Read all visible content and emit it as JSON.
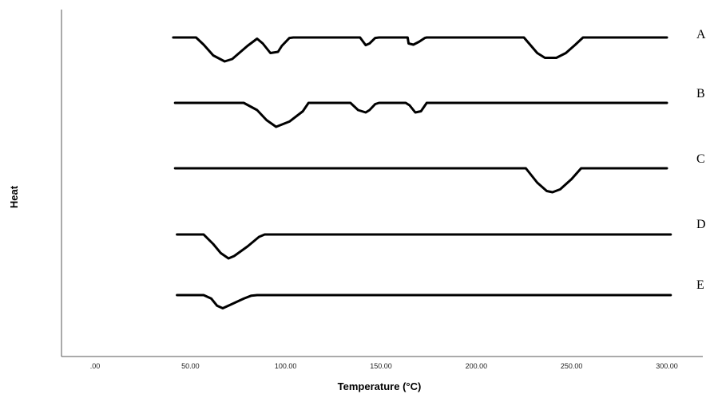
{
  "chart_data": {
    "type": "line",
    "xlabel": "Temperature (°C)",
    "ylabel": "Heat",
    "xlim": [
      -10,
      310
    ],
    "x_ticks": [
      ".00",
      "50.00",
      "100.00",
      "150.00",
      "200.00",
      "250.00",
      "300.00"
    ],
    "x_tick_values": [
      0,
      50,
      100,
      150,
      200,
      250,
      300
    ],
    "grid": false,
    "series": [
      {
        "name": "A",
        "points": [
          [
            41,
            0
          ],
          [
            53,
            0
          ],
          [
            57,
            -0.3
          ],
          [
            62,
            -0.75
          ],
          [
            68,
            -1
          ],
          [
            72,
            -0.9
          ],
          [
            80,
            -0.35
          ],
          [
            85,
            -0.05
          ],
          [
            88,
            -0.25
          ],
          [
            92,
            -0.65
          ],
          [
            96,
            -0.6
          ],
          [
            98,
            -0.35
          ],
          [
            102,
            -0.02
          ],
          [
            104,
            0
          ],
          [
            139,
            0
          ],
          [
            142,
            -0.32
          ],
          [
            144,
            -0.25
          ],
          [
            147,
            -0.02
          ],
          [
            149,
            0
          ],
          [
            164,
            0
          ],
          [
            164.5,
            -0.25
          ],
          [
            167,
            -0.3
          ],
          [
            170,
            -0.18
          ],
          [
            173,
            -0.02
          ],
          [
            174,
            0
          ],
          [
            225,
            0
          ],
          [
            232,
            -0.65
          ],
          [
            236,
            -0.85
          ],
          [
            242,
            -0.85
          ],
          [
            247,
            -0.65
          ],
          [
            252,
            -0.3
          ],
          [
            256,
            0
          ],
          [
            300,
            0
          ]
        ]
      },
      {
        "name": "B",
        "points": [
          [
            42,
            0
          ],
          [
            78,
            0
          ],
          [
            85,
            -0.3
          ],
          [
            90,
            -0.72
          ],
          [
            95,
            -1
          ],
          [
            102,
            -0.78
          ],
          [
            109,
            -0.35
          ],
          [
            112,
            0
          ],
          [
            134,
            0
          ],
          [
            138,
            -0.3
          ],
          [
            142,
            -0.4
          ],
          [
            144,
            -0.3
          ],
          [
            147,
            -0.05
          ],
          [
            149,
            0
          ],
          [
            163,
            0
          ],
          [
            165,
            -0.1
          ],
          [
            168,
            -0.4
          ],
          [
            171,
            -0.35
          ],
          [
            174,
            0
          ],
          [
            300,
            0
          ]
        ]
      },
      {
        "name": "C",
        "points": [
          [
            42,
            0
          ],
          [
            226,
            0
          ],
          [
            232,
            -0.6
          ],
          [
            237,
            -0.95
          ],
          [
            240,
            -1
          ],
          [
            244,
            -0.88
          ],
          [
            250,
            -0.45
          ],
          [
            255,
            0
          ],
          [
            300,
            0
          ]
        ]
      },
      {
        "name": "D",
        "points": [
          [
            43,
            0
          ],
          [
            57,
            0
          ],
          [
            62,
            -0.4
          ],
          [
            66,
            -0.78
          ],
          [
            70,
            -1
          ],
          [
            73,
            -0.9
          ],
          [
            80,
            -0.5
          ],
          [
            86,
            -0.1
          ],
          [
            89,
            0
          ],
          [
            302,
            0
          ]
        ]
      },
      {
        "name": "E",
        "points": [
          [
            43,
            0
          ],
          [
            57,
            0
          ],
          [
            61,
            -0.2
          ],
          [
            64,
            -0.6
          ],
          [
            67,
            -0.75
          ],
          [
            71,
            -0.55
          ],
          [
            78,
            -0.2
          ],
          [
            82,
            -0.03
          ],
          [
            85,
            0
          ],
          [
            302,
            0
          ]
        ]
      }
    ]
  }
}
